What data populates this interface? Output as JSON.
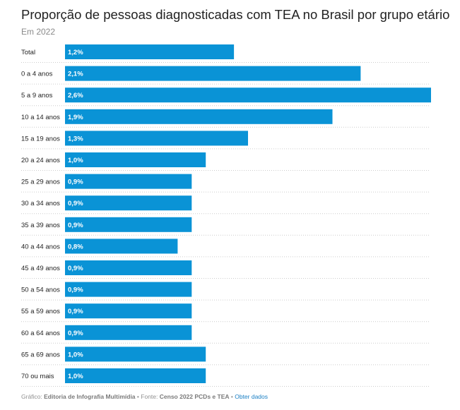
{
  "title": "Proporção de pessoas diagnosticadas com TEA no Brasil por grupo etário",
  "subtitle": "Em 2022",
  "footer": {
    "credit_label": "Gráfico:",
    "credit_value": "Editoria de Infografia Multimídia",
    "separator": "•",
    "source_label": "Fonte:",
    "source_value": "Censo 2022 PCDs e TEA",
    "separator2": "•",
    "link_label": "Obter dados"
  },
  "colors": {
    "bar": "#0a93d6",
    "label_text": "#ffffff",
    "category_text": "#222222",
    "gridline": "#cccccc"
  },
  "chart_data": {
    "type": "bar",
    "orientation": "horizontal",
    "categories": [
      "Total",
      "0 a 4 anos",
      "5 a 9 anos",
      "10 a 14 anos",
      "15 a 19 anos",
      "20 a 24 anos",
      "25 a 29 anos",
      "30 a 34 anos",
      "35 a 39 anos",
      "40 a 44 anos",
      "45 a 49 anos",
      "50 a 54 anos",
      "55 a 59 anos",
      "60 a 64 anos",
      "65 a 69 anos",
      "70 ou mais"
    ],
    "values": [
      1.2,
      2.1,
      2.6,
      1.9,
      1.3,
      1.0,
      0.9,
      0.9,
      0.9,
      0.8,
      0.9,
      0.9,
      0.9,
      0.9,
      1.0,
      1.0
    ],
    "data_labels": [
      "1,2%",
      "2,1%",
      "2,6%",
      "1,9%",
      "1,3%",
      "1,0%",
      "0,9%",
      "0,9%",
      "0,9%",
      "0,8%",
      "0,9%",
      "0,9%",
      "0,9%",
      "0,9%",
      "1,0%",
      "1,0%"
    ],
    "title": "Proporção de pessoas diagnosticadas com TEA no Brasil por grupo etário",
    "subtitle": "Em 2022",
    "xlim": [
      0,
      2.6
    ],
    "grid": false,
    "legend": "none"
  }
}
